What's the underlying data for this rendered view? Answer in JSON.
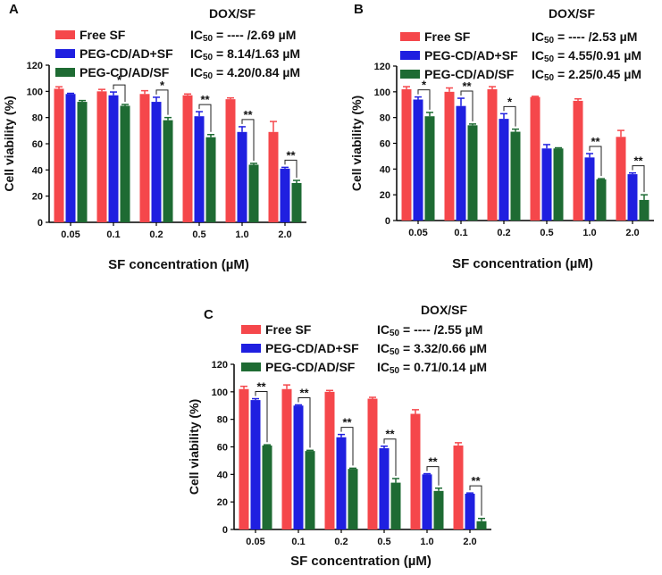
{
  "figure": {
    "dox_sf_label": "DOX/SF",
    "ic50_prefix": "IC",
    "ic50_subscript": "50",
    "ic50_equals": " = ",
    "ic50_unit": "µM",
    "legend_entries": [
      "Free SF",
      "PEG-CD/AD+SF",
      "PEG-CD/AD/SF"
    ],
    "colors": {
      "free": "#f5474b",
      "adsf": "#1f1fe0",
      "adslash": "#1e6b33"
    }
  },
  "chart_data": [
    {
      "panel": "A",
      "type": "bar",
      "title": "",
      "xlabel": "SF concentration (µM)",
      "ylabel": "Cell viability (%)",
      "ylim": [
        0,
        120
      ],
      "yticks": [
        0,
        20,
        40,
        60,
        80,
        100,
        120
      ],
      "categories": [
        "0.05",
        "0.1",
        "0.2",
        "0.5",
        "1.0",
        "2.0"
      ],
      "series": [
        {
          "name": "Free SF",
          "values": [
            102,
            100,
            98,
            97,
            94,
            69
          ],
          "errors": [
            1.5,
            1.5,
            2.5,
            1.0,
            1.0,
            8.0
          ]
        },
        {
          "name": "PEG-CD/AD+SF",
          "values": [
            98,
            97,
            92,
            81,
            69,
            41
          ],
          "errors": [
            0.5,
            2.5,
            3.5,
            3.5,
            4.0,
            1.0
          ]
        },
        {
          "name": "PEG-CD/AD/SF",
          "values": [
            92,
            89,
            78,
            65,
            44,
            30
          ],
          "errors": [
            1.0,
            1.0,
            2.0,
            2.0,
            1.0,
            2.0
          ]
        }
      ],
      "ic50": [
        "---- /2.69",
        "8.14/1.63",
        "4.20/0.84"
      ],
      "significance": [
        {
          "category": "0.1",
          "pair": "adsf-adslash",
          "label": "*"
        },
        {
          "category": "0.2",
          "pair": "adsf-adslash",
          "label": "*"
        },
        {
          "category": "0.5",
          "pair": "adsf-adslash",
          "label": "**"
        },
        {
          "category": "1.0",
          "pair": "adsf-adslash",
          "label": "**"
        },
        {
          "category": "2.0",
          "pair": "adsf-adslash",
          "label": "**"
        }
      ]
    },
    {
      "panel": "B",
      "type": "bar",
      "title": "",
      "xlabel": "SF concentration (µM)",
      "ylabel": "Cell viability (%)",
      "ylim": [
        0,
        120
      ],
      "yticks": [
        0,
        20,
        40,
        60,
        80,
        100,
        120
      ],
      "categories": [
        "0.05",
        "0.1",
        "0.2",
        "0.5",
        "1.0",
        "2.0"
      ],
      "series": [
        {
          "name": "Free SF",
          "values": [
            102,
            100,
            102,
            96,
            93,
            65
          ],
          "errors": [
            2.0,
            3.0,
            2.0,
            0.5,
            1.5,
            5.0
          ]
        },
        {
          "name": "PEG-CD/AD+SF",
          "values": [
            94,
            89,
            79,
            56,
            49,
            36
          ],
          "errors": [
            2.0,
            6.0,
            4.0,
            3.0,
            3.0,
            1.0
          ]
        },
        {
          "name": "PEG-CD/AD/SF",
          "values": [
            81,
            74,
            69,
            56,
            32,
            16
          ],
          "errors": [
            3.0,
            1.0,
            2.0,
            0.5,
            0.5,
            4.0
          ]
        }
      ],
      "ic50": [
        "---- /2.53",
        "4.55/0.91",
        "2.25/0.45"
      ],
      "significance": [
        {
          "category": "0.05",
          "pair": "adsf-adslash",
          "label": "*"
        },
        {
          "category": "0.1",
          "pair": "adsf-adslash",
          "label": "**"
        },
        {
          "category": "0.2",
          "pair": "adsf-adslash",
          "label": "*"
        },
        {
          "category": "1.0",
          "pair": "adsf-adslash",
          "label": "**"
        },
        {
          "category": "2.0",
          "pair": "adsf-adslash",
          "label": "**"
        }
      ]
    },
    {
      "panel": "C",
      "type": "bar",
      "title": "",
      "xlabel": "SF concentration (µM)",
      "ylabel": "Cell viability (%)",
      "ylim": [
        0,
        120
      ],
      "yticks": [
        0,
        20,
        40,
        60,
        80,
        100,
        120
      ],
      "categories": [
        "0.05",
        "0.1",
        "0.2",
        "0.5",
        "1.0",
        "2.0"
      ],
      "series": [
        {
          "name": "Free SF",
          "values": [
            102,
            102,
            100,
            95,
            84,
            61
          ],
          "errors": [
            2.0,
            3.0,
            1.0,
            1.0,
            3.0,
            2.0
          ]
        },
        {
          "name": "PEG-CD/AD+SF",
          "values": [
            94,
            90,
            67,
            59,
            40,
            26
          ],
          "errors": [
            1.0,
            0.5,
            2.0,
            1.5,
            0.5,
            0.5
          ]
        },
        {
          "name": "PEG-CD/AD/SF",
          "values": [
            61,
            57,
            44,
            34,
            28,
            6
          ],
          "errors": [
            0.5,
            0.5,
            0.5,
            3.0,
            2.0,
            2.0
          ]
        }
      ],
      "ic50": [
        "---- /2.55",
        "3.32/0.66",
        "0.71/0.14"
      ],
      "significance": [
        {
          "category": "0.05",
          "pair": "adsf-adslash",
          "label": "**"
        },
        {
          "category": "0.1",
          "pair": "adsf-adslash",
          "label": "**"
        },
        {
          "category": "0.2",
          "pair": "adsf-adslash",
          "label": "**"
        },
        {
          "category": "0.5",
          "pair": "adsf-adslash",
          "label": "**"
        },
        {
          "category": "1.0",
          "pair": "adsf-adslash",
          "label": "**"
        },
        {
          "category": "2.0",
          "pair": "adsf-adslash",
          "label": "**"
        }
      ]
    }
  ]
}
